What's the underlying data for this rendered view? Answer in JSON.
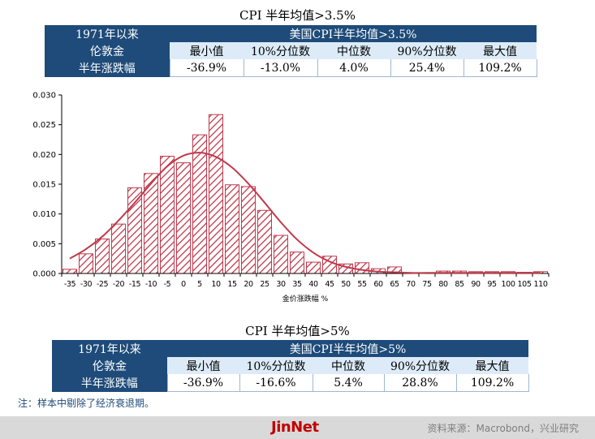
{
  "table1": {
    "title": "CPI 半年均值>3.5%",
    "side_labels": [
      "1971年以来",
      "伦敦金",
      "半年涨跌幅"
    ],
    "header": "美国CPI半年均值>3.5%",
    "columns": [
      "最小值",
      "10%分位数",
      "中位数",
      "90%分位数",
      "最大值"
    ],
    "values": [
      "-36.9%",
      "-13.0%",
      "4.0%",
      "25.4%",
      "109.2%"
    ]
  },
  "table2": {
    "title": "CPI 半年均值>5%",
    "side_labels": [
      "1971年以来",
      "伦敦金",
      "半年涨跌幅"
    ],
    "header": "美国CPI半年均值>5%",
    "columns": [
      "最小值",
      "10%分位数",
      "中位数",
      "90%分位数",
      "最大值"
    ],
    "values": [
      "-36.9%",
      "-16.6%",
      "5.4%",
      "28.8%",
      "109.2%"
    ]
  },
  "note": "注：样本中剔除了经济衰退期。",
  "footer": {
    "logo": "JinNet",
    "source": "资料来源：Macrobond，兴业研究"
  },
  "chart_data": {
    "type": "bar",
    "title": "",
    "xlabel": "金价涨跌幅 %",
    "ylabel": "",
    "ylim": [
      0,
      0.03
    ],
    "yticks": [
      "0.000",
      "0.005",
      "0.010",
      "0.015",
      "0.020",
      "0.025",
      "0.030"
    ],
    "categories": [
      "-35",
      "-30",
      "-25",
      "-20",
      "-15",
      "-10",
      "-5",
      "0",
      "5",
      "10",
      "15",
      "20",
      "25",
      "30",
      "35",
      "40",
      "45",
      "50",
      "55",
      "60",
      "65",
      "70",
      "75",
      "80",
      "85",
      "90",
      "95",
      "100",
      "105",
      "110"
    ],
    "values": [
      0.0007,
      0.0033,
      0.0058,
      0.0083,
      0.0144,
      0.0168,
      0.0197,
      0.0186,
      0.0233,
      0.0267,
      0.0149,
      0.0146,
      0.0106,
      0.0064,
      0.0036,
      0.0019,
      0.0029,
      0.0016,
      0.0018,
      0.0008,
      0.0011,
      0.0001,
      0.0001,
      0.0004,
      0.0004,
      0.0003,
      0.0003,
      0.0003,
      0.0002,
      0.0003
    ],
    "fit_curve": {
      "x": [
        -35,
        -30,
        -25,
        -20,
        -15,
        -10,
        -5,
        0,
        5,
        10,
        15,
        20,
        25,
        30,
        35,
        40,
        45,
        50,
        55,
        60,
        65,
        70,
        75,
        80,
        85,
        90,
        95,
        100,
        105,
        110
      ],
      "y": [
        0.0025,
        0.0041,
        0.0062,
        0.0089,
        0.0119,
        0.0151,
        0.018,
        0.0198,
        0.0203,
        0.0196,
        0.0178,
        0.0151,
        0.0119,
        0.0086,
        0.0057,
        0.0035,
        0.002,
        0.0011,
        0.0006,
        0.0003,
        0.0002,
        0.0001,
        0.0001,
        0.0001,
        0.0001,
        0.0001,
        0.0001,
        0.0001,
        0.0001,
        0.0001
      ]
    },
    "bar_color": "#c0394b",
    "curve_color": "#c0394b",
    "grid": false,
    "legend": "none"
  }
}
